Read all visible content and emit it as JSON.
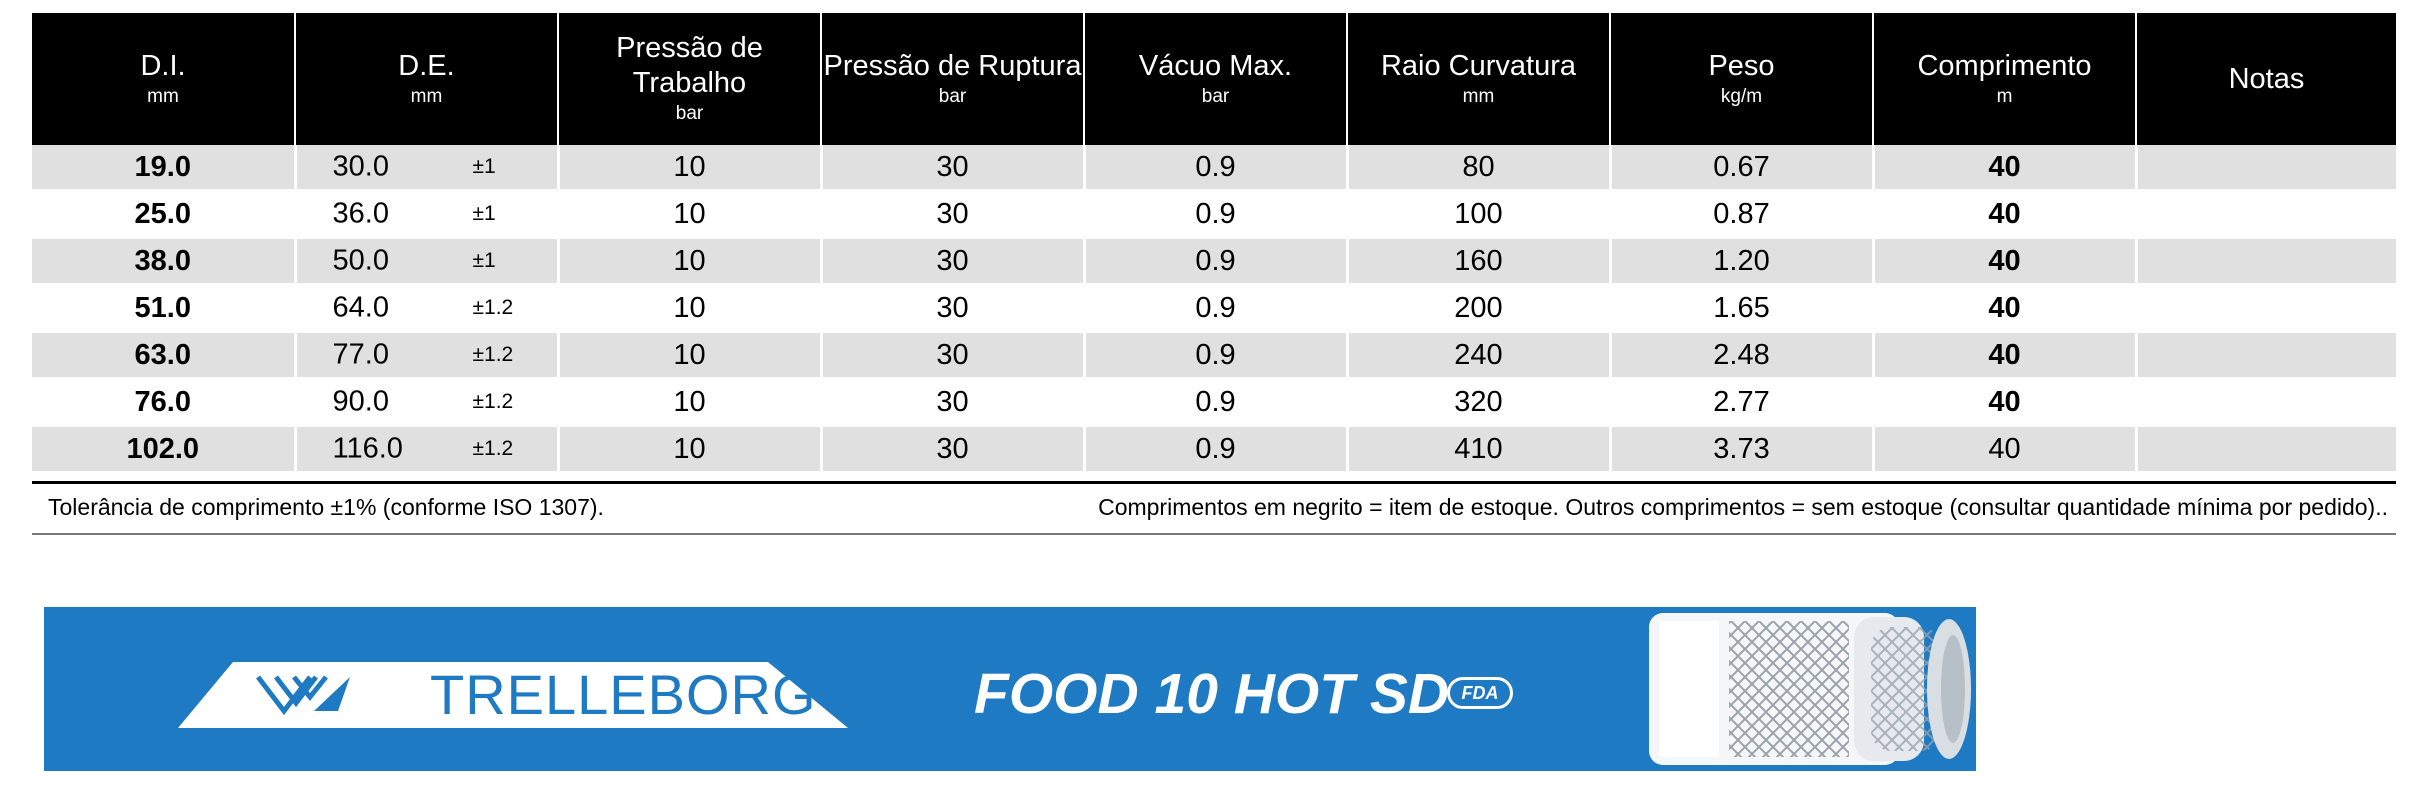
{
  "table": {
    "headers": [
      {
        "label": "D.I.",
        "unit": "mm"
      },
      {
        "label": "D.E.",
        "unit": "mm"
      },
      {
        "label": "Pressão de Trabalho",
        "unit": "bar"
      },
      {
        "label": "Pressão de Ruptura",
        "unit": "bar"
      },
      {
        "label": "Vácuo Max.",
        "unit": "bar"
      },
      {
        "label": "Raio Curvatura",
        "unit": "mm"
      },
      {
        "label": "Peso",
        "unit": "kg/m"
      },
      {
        "label": "Comprimento",
        "unit": "m"
      },
      {
        "label": "Notas",
        "unit": ""
      }
    ],
    "rows": [
      {
        "di": "19.0",
        "de": "30.0",
        "tol": "±1",
        "trabalho": "10",
        "ruptura": "30",
        "vacuo": "0.9",
        "raio": "80",
        "peso": "0.67",
        "comprimento": "40",
        "comprimento_bold": true,
        "notas": ""
      },
      {
        "di": "25.0",
        "de": "36.0",
        "tol": "±1",
        "trabalho": "10",
        "ruptura": "30",
        "vacuo": "0.9",
        "raio": "100",
        "peso": "0.87",
        "comprimento": "40",
        "comprimento_bold": true,
        "notas": ""
      },
      {
        "di": "38.0",
        "de": "50.0",
        "tol": "±1",
        "trabalho": "10",
        "ruptura": "30",
        "vacuo": "0.9",
        "raio": "160",
        "peso": "1.20",
        "comprimento": "40",
        "comprimento_bold": true,
        "notas": ""
      },
      {
        "di": "51.0",
        "de": "64.0",
        "tol": "±1.2",
        "trabalho": "10",
        "ruptura": "30",
        "vacuo": "0.9",
        "raio": "200",
        "peso": "1.65",
        "comprimento": "40",
        "comprimento_bold": true,
        "notas": ""
      },
      {
        "di": "63.0",
        "de": "77.0",
        "tol": "±1.2",
        "trabalho": "10",
        "ruptura": "30",
        "vacuo": "0.9",
        "raio": "240",
        "peso": "2.48",
        "comprimento": "40",
        "comprimento_bold": true,
        "notas": ""
      },
      {
        "di": "76.0",
        "de": "90.0",
        "tol": "±1.2",
        "trabalho": "10",
        "ruptura": "30",
        "vacuo": "0.9",
        "raio": "320",
        "peso": "2.77",
        "comprimento": "40",
        "comprimento_bold": true,
        "notas": ""
      },
      {
        "di": "102.0",
        "de": "116.0",
        "tol": "±1.2",
        "trabalho": "10",
        "ruptura": "30",
        "vacuo": "0.9",
        "raio": "410",
        "peso": "3.73",
        "comprimento": "40",
        "comprimento_bold": false,
        "notas": ""
      }
    ]
  },
  "notes": {
    "left": "Tolerância de comprimento ±1% (conforme ISO 1307).",
    "right": "Comprimentos em negrito = item de estoque. Outros comprimentos = sem estoque (consultar quantidade mínima por pedido).."
  },
  "banner": {
    "brand": "TRELLEBORG",
    "product": "FOOD 10 HOT SD",
    "badge": "FDA",
    "background_color": "#1f7ac4",
    "logo_icon": "trelleborg-logo-icon",
    "hose_icon": "hose-image"
  }
}
